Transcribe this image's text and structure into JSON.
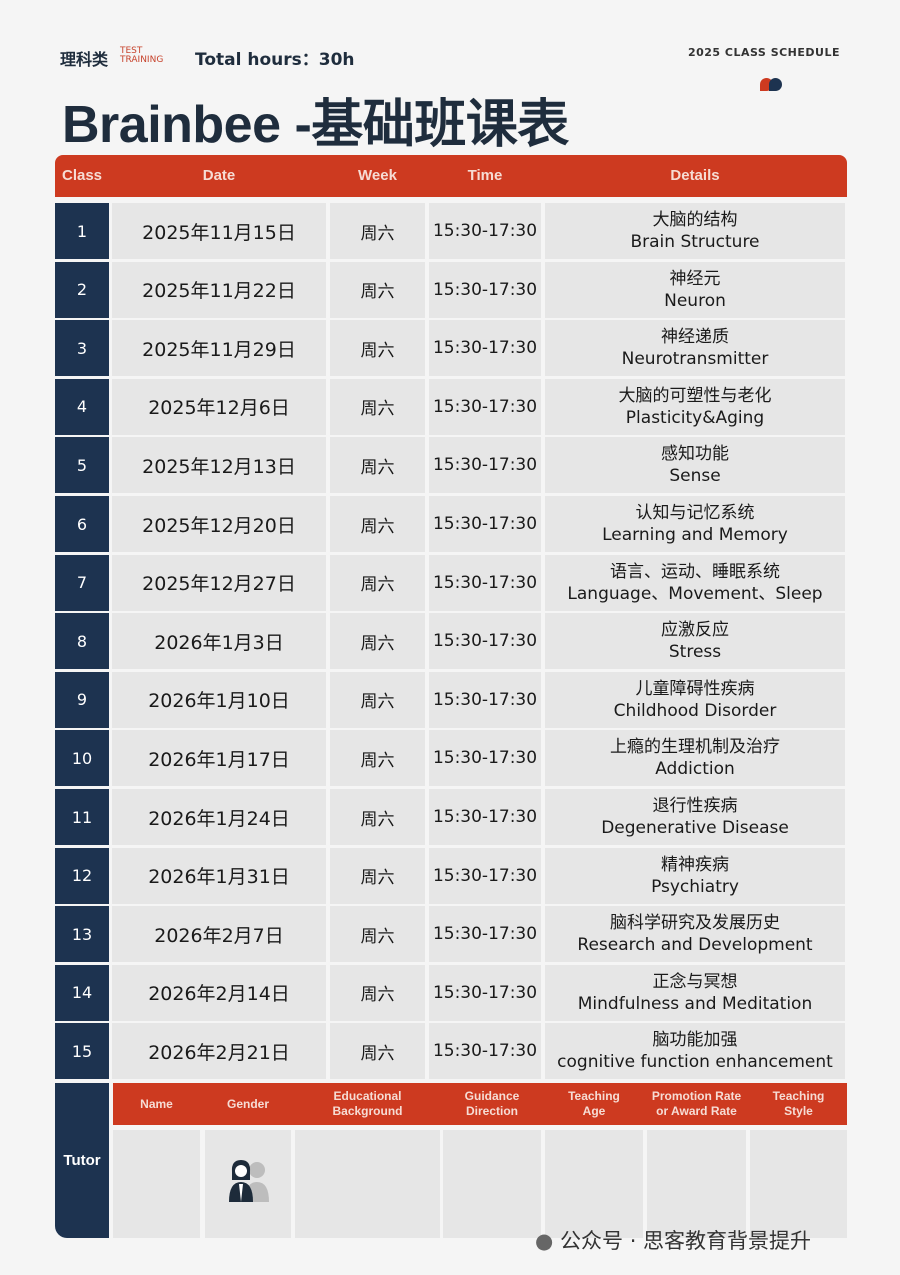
{
  "header": {
    "category": "理科类",
    "sub1": "TEST",
    "sub2": "TRAINING",
    "total_hours": "Total hours：30h",
    "schedule_label": "2025 CLASS SCHEDULE",
    "title": "Brainbee -基础班课表",
    "accent": "#cd3a20",
    "navy": "#1d3350"
  },
  "table": {
    "columns": [
      "Class",
      "Date",
      "Week",
      "Time",
      "Details"
    ],
    "rows": [
      {
        "cls": "1",
        "date": "2025年11月15日",
        "week": "周六",
        "time": "15:30-17:30",
        "zh": "大脑的结构",
        "en": "Brain Structure"
      },
      {
        "cls": "2",
        "date": "2025年11月22日",
        "week": "周六",
        "time": "15:30-17:30",
        "zh": "神经元",
        "en": "Neuron"
      },
      {
        "cls": "3",
        "date": "2025年11月29日",
        "week": "周六",
        "time": "15:30-17:30",
        "zh": "神经递质",
        "en": "Neurotransmitter"
      },
      {
        "cls": "4",
        "date": "2025年12月6日",
        "week": "周六",
        "time": "15:30-17:30",
        "zh": "大脑的可塑性与老化",
        "en": "Plasticity&Aging"
      },
      {
        "cls": "5",
        "date": "2025年12月13日",
        "week": "周六",
        "time": "15:30-17:30",
        "zh": "感知功能",
        "en": "Sense"
      },
      {
        "cls": "6",
        "date": "2025年12月20日",
        "week": "周六",
        "time": "15:30-17:30",
        "zh": "认知与记忆系统",
        "en": "Learning and Memory"
      },
      {
        "cls": "7",
        "date": "2025年12月27日",
        "week": "周六",
        "time": "15:30-17:30",
        "zh": "语言、运动、睡眠系统",
        "en": "Language、Movement、Sleep"
      },
      {
        "cls": "8",
        "date": "2026年1月3日",
        "week": "周六",
        "time": "15:30-17:30",
        "zh": "应激反应",
        "en": "Stress"
      },
      {
        "cls": "9",
        "date": "2026年1月10日",
        "week": "周六",
        "time": "15:30-17:30",
        "zh": "儿童障碍性疾病",
        "en": "Childhood Disorder"
      },
      {
        "cls": "10",
        "date": "2026年1月17日",
        "week": "周六",
        "time": "15:30-17:30",
        "zh": "上瘾的生理机制及治疗",
        "en": "Addiction"
      },
      {
        "cls": "11",
        "date": "2026年1月24日",
        "week": "周六",
        "time": "15:30-17:30",
        "zh": "退行性疾病",
        "en": "Degenerative Disease"
      },
      {
        "cls": "12",
        "date": "2026年1月31日",
        "week": "周六",
        "time": "15:30-17:30",
        "zh": "精神疾病",
        "en": "Psychiatry"
      },
      {
        "cls": "13",
        "date": "2026年2月7日",
        "week": "周六",
        "time": "15:30-17:30",
        "zh": "脑科学研究及发展历史",
        "en": "Research and Development"
      },
      {
        "cls": "14",
        "date": "2026年2月14日",
        "week": "周六",
        "time": "15:30-17:30",
        "zh": "正念与冥想",
        "en": "Mindfulness and Meditation"
      },
      {
        "cls": "15",
        "date": "2026年2月21日",
        "week": "周六",
        "time": "15:30-17:30",
        "zh": "脑功能加强",
        "en": "cognitive function enhancement"
      }
    ]
  },
  "tutor": {
    "label": "Tutor",
    "columns": [
      "Name",
      "Gender",
      "Educational Background",
      "Guidance Direction",
      "Teaching Age",
      "Promotion Rate or Award Rate",
      "Teaching Style"
    ],
    "gender_icon": "male-female-avatar-icon"
  },
  "watermark": "公众号 · 思客教育背景提升"
}
